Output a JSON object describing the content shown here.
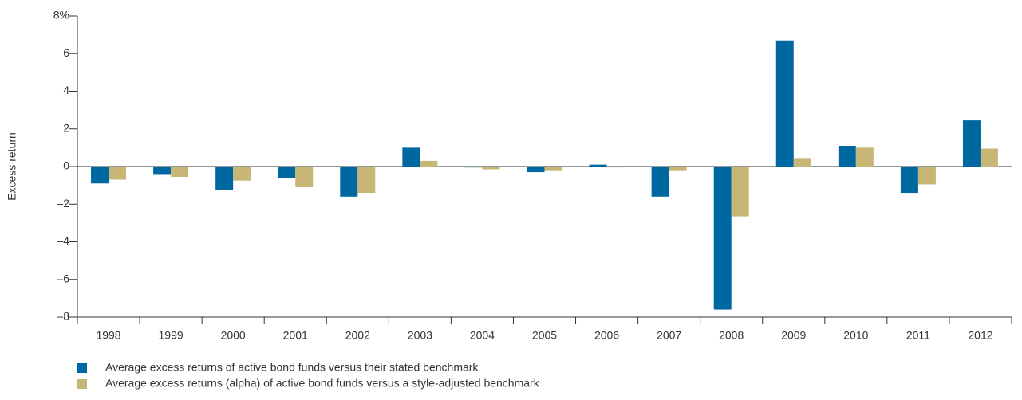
{
  "chart_data": {
    "type": "bar",
    "ylabel": "Excess return",
    "categories": [
      "1998",
      "1999",
      "2000",
      "2001",
      "2002",
      "2003",
      "2004",
      "2005",
      "2006",
      "2007",
      "2008",
      "2009",
      "2010",
      "2011",
      "2012"
    ],
    "series": [
      {
        "name": "Average excess returns of active bond funds versus their stated benchmark",
        "color": "#0068a0",
        "values": [
          -0.9,
          -0.4,
          -1.25,
          -0.6,
          -1.6,
          1.0,
          -0.05,
          -0.3,
          0.1,
          -1.6,
          -7.6,
          6.7,
          1.1,
          -1.4,
          2.45
        ]
      },
      {
        "name": "Average excess returns (alpha) of active bond funds versus a style-adjusted benchmark",
        "color": "#c8b677",
        "values": [
          -0.7,
          -0.55,
          -0.75,
          -1.1,
          -1.4,
          0.3,
          -0.15,
          -0.2,
          -0.05,
          -0.2,
          -2.65,
          0.45,
          1.0,
          -0.95,
          0.95
        ]
      }
    ],
    "ylim": [
      -8,
      8
    ],
    "yticks": [
      {
        "value": -8,
        "label": "–8"
      },
      {
        "value": -6,
        "label": "–6"
      },
      {
        "value": -4,
        "label": "–4"
      },
      {
        "value": -2,
        "label": "–2"
      },
      0,
      2,
      4,
      6,
      {
        "value": 8,
        "label": "8%"
      }
    ],
    "grid": false
  }
}
